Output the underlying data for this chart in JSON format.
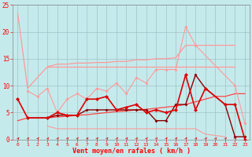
{
  "bg_color": "#c5eaec",
  "grid_color": "#9bbfc2",
  "xlabel": "Vent moyen/en rafales ( km/h )",
  "xlim": [
    -0.5,
    23.5
  ],
  "ylim": [
    0,
    25
  ],
  "yticks": [
    0,
    5,
    10,
    15,
    20,
    25
  ],
  "xticks": [
    0,
    1,
    2,
    3,
    4,
    5,
    6,
    7,
    8,
    9,
    10,
    11,
    12,
    13,
    14,
    15,
    16,
    17,
    18,
    19,
    20,
    21,
    22,
    23
  ],
  "color_light": "#ff9999",
  "color_mid": "#ff4444",
  "color_dark": "#dd0000",
  "color_darkest": "#880000",
  "line_upper_envelope_x": [
    0,
    1,
    3,
    4,
    5,
    6,
    7,
    8,
    9,
    10,
    11,
    12,
    13,
    14,
    15,
    16,
    17,
    18,
    19,
    20,
    21,
    22
  ],
  "line_upper_envelope_y": [
    23.5,
    9.5,
    13.5,
    14.0,
    14.0,
    14.2,
    14.2,
    14.3,
    14.3,
    14.5,
    14.5,
    14.8,
    14.8,
    15.0,
    15.0,
    15.2,
    17.5,
    17.5,
    17.5,
    17.5,
    17.5,
    17.5
  ],
  "line_flat_x": [
    3,
    4,
    5,
    6,
    7,
    8,
    9,
    10,
    11,
    12,
    13,
    14,
    15,
    16,
    17,
    18,
    19,
    20,
    21,
    22
  ],
  "line_flat_y": [
    13.5,
    13.5,
    13.5,
    13.5,
    13.5,
    13.5,
    13.5,
    13.5,
    13.5,
    13.5,
    13.5,
    13.5,
    13.5,
    13.5,
    13.5,
    13.5,
    13.5,
    13.5,
    13.5,
    13.5
  ],
  "line_wiggly_x": [
    1,
    2,
    3,
    4,
    5,
    6,
    7,
    8,
    9,
    10,
    11,
    12,
    13,
    14,
    15,
    16,
    17,
    18,
    22,
    23
  ],
  "line_wiggly_y": [
    9.0,
    8.0,
    9.5,
    5.0,
    7.5,
    8.5,
    7.5,
    9.5,
    9.0,
    10.5,
    8.5,
    11.5,
    10.5,
    13.0,
    13.0,
    13.0,
    21.0,
    17.5,
    10.0,
    3.0
  ],
  "line_rising_x": [
    0,
    1,
    3,
    4,
    5,
    6,
    7,
    8,
    9,
    10,
    11,
    12,
    13,
    14,
    15,
    16,
    17,
    18,
    19,
    20,
    21,
    22,
    23
  ],
  "line_rising_y": [
    3.5,
    4.0,
    4.0,
    4.2,
    4.3,
    4.5,
    4.6,
    4.8,
    5.0,
    5.2,
    5.3,
    5.5,
    5.6,
    5.8,
    6.0,
    6.2,
    6.5,
    7.0,
    7.5,
    8.0,
    8.0,
    8.5,
    8.5
  ],
  "line_dark_x": [
    0,
    1,
    3,
    4,
    5,
    6,
    7,
    8,
    9,
    10,
    11,
    12,
    13,
    14,
    15,
    16,
    17,
    18,
    19,
    21,
    22,
    23
  ],
  "line_dark_y": [
    7.5,
    4.0,
    4.0,
    5.0,
    4.5,
    4.5,
    7.5,
    7.5,
    8.0,
    5.5,
    6.0,
    6.5,
    5.0,
    5.5,
    5.0,
    5.5,
    12.0,
    5.5,
    9.5,
    6.5,
    6.5,
    0.0
  ],
  "line_darkest_x": [
    1,
    3,
    4,
    5,
    6,
    7,
    8,
    9,
    10,
    11,
    12,
    13,
    14,
    15,
    16,
    17,
    18,
    19,
    21,
    22,
    23
  ],
  "line_darkest_y": [
    4.0,
    4.0,
    4.5,
    4.5,
    4.5,
    5.5,
    5.5,
    5.5,
    5.5,
    5.5,
    5.5,
    5.5,
    3.5,
    3.5,
    6.5,
    6.5,
    12.0,
    9.5,
    6.5,
    0.5,
    0.5
  ],
  "line_lower_flat_x": [
    3,
    4,
    5,
    6,
    7,
    8,
    9,
    10,
    11,
    12,
    13,
    14,
    15,
    16,
    17,
    18,
    19,
    21
  ],
  "line_lower_flat_y": [
    2.5,
    2.0,
    2.0,
    2.0,
    2.0,
    2.0,
    2.0,
    2.0,
    2.0,
    2.0,
    2.0,
    2.0,
    2.0,
    2.0,
    2.0,
    2.0,
    1.0,
    0.5
  ],
  "arrows_x": [
    0,
    1,
    2,
    3,
    4,
    5,
    6,
    7,
    8,
    9,
    10,
    11,
    12,
    13,
    14,
    15,
    16,
    17,
    18,
    19,
    20,
    21,
    22
  ]
}
